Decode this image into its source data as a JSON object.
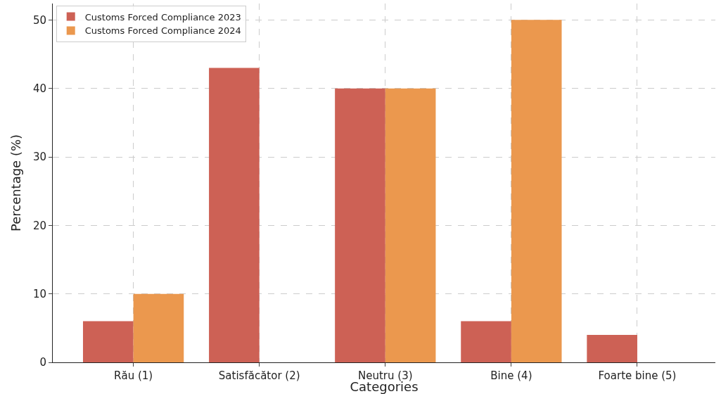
{
  "chart_data": {
    "type": "bar",
    "xlabel": "Categories",
    "ylabel": "Percentage (%)",
    "categories": [
      "Rău (1)",
      "Satisfăcător (2)",
      "Neutru (3)",
      "Bine (4)",
      "Foarte bine (5)"
    ],
    "series": [
      {
        "name": "Customs Forced Compliance 2023",
        "color": "#cd6155",
        "values": [
          6,
          43,
          40,
          6,
          4
        ]
      },
      {
        "name": "Customs Forced Compliance 2024",
        "color": "#eb984e",
        "values": [
          10,
          0,
          40,
          50,
          0
        ]
      }
    ],
    "ylim": [
      0,
      52.4
    ],
    "yticks": [
      0,
      10,
      20,
      30,
      40,
      50
    ],
    "grid": true,
    "legend": "top left"
  }
}
